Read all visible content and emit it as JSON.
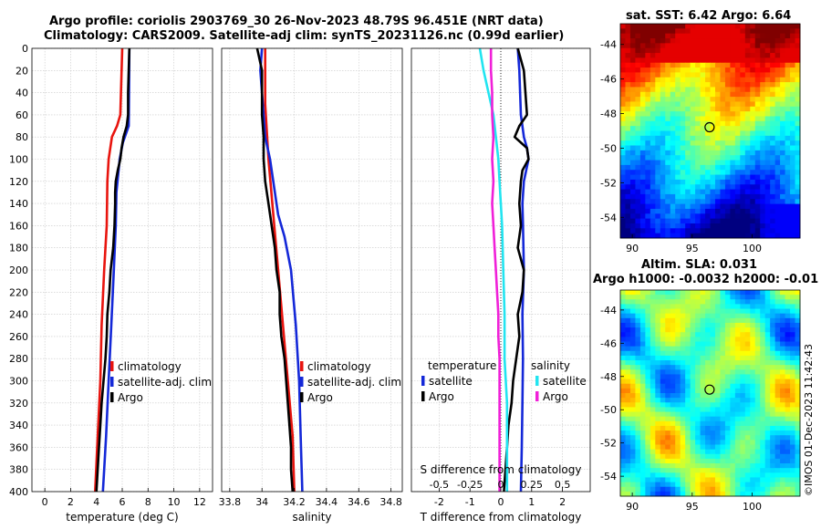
{
  "header": {
    "title_line1": "Argo profile: coriolis 2903769_30 26-Nov-2023 48.79S 96.451E (NRT data)",
    "title_line2": "Climatology: CARS2009. Satellite-adj clim: synTS_20231126.nc (0.99d earlier)"
  },
  "sst_map": {
    "title": "sat. SST: 6.42 Argo: 6.64",
    "lat_ticks": [
      -44,
      -46,
      -48,
      -50,
      -52,
      -54
    ],
    "lon_ticks": [
      90,
      95,
      100
    ],
    "lat_range": [
      -55.2,
      -42.8
    ],
    "lon_range": [
      89,
      104
    ],
    "float_position": {
      "lon": 96.451,
      "lat": -48.79
    }
  },
  "sla_map": {
    "title_line1": "Altim. SLA: 0.031",
    "title_line2": "Argo h1000: -0.0032 h2000: -0.01",
    "lat_ticks": [
      -44,
      -46,
      -48,
      -50,
      -52,
      -54
    ],
    "lon_ticks": [
      90,
      95,
      100
    ],
    "lat_range": [
      -55.2,
      -42.8
    ],
    "lon_range": [
      89,
      104
    ],
    "float_position": {
      "lon": 96.451,
      "lat": -48.79
    }
  },
  "watermark": "©IMOS 01-Dec-2023 11:42:43",
  "colors": {
    "climatology": "#e8140e",
    "satellite": "#1428d8",
    "argo": "#000000",
    "salinity_satellite": "#22e4f0",
    "salinity_argo": "#f020d8",
    "grid": "#c8c8c8"
  },
  "chart_data": [
    {
      "type": "line",
      "name": "temperature-panel",
      "xlabel": "temperature (deg C)",
      "ylabel": "",
      "xlim": [
        -1,
        13
      ],
      "ylim": [
        400,
        0
      ],
      "xticks": [
        0,
        2,
        4,
        6,
        8,
        10,
        12
      ],
      "yticks": [
        0,
        20,
        40,
        60,
        80,
        100,
        120,
        140,
        160,
        180,
        200,
        220,
        240,
        260,
        280,
        300,
        320,
        340,
        360,
        380,
        400
      ],
      "legend": [
        "climatology",
        "satellite-adj. clim",
        "Argo"
      ],
      "series": [
        {
          "name": "climatology",
          "color": "#e8140e",
          "depth": [
            0,
            60,
            70,
            80,
            100,
            120,
            160,
            200,
            250,
            300,
            350,
            400
          ],
          "values": [
            6.0,
            5.85,
            5.6,
            5.2,
            4.95,
            4.85,
            4.8,
            4.6,
            4.4,
            4.3,
            4.1,
            3.9
          ]
        },
        {
          "name": "satellite-adj. clim",
          "color": "#1428d8",
          "depth": [
            0,
            70,
            85,
            100,
            130,
            160,
            200,
            250,
            300,
            350,
            400
          ],
          "values": [
            6.55,
            6.5,
            6.05,
            5.8,
            5.55,
            5.5,
            5.35,
            5.15,
            4.95,
            4.75,
            4.5
          ]
        },
        {
          "name": "Argo",
          "color": "#000000",
          "depth": [
            0,
            20,
            40,
            60,
            70,
            80,
            90,
            100,
            110,
            120,
            130,
            140,
            160,
            180,
            200,
            220,
            240,
            260,
            280,
            300,
            320,
            340,
            360,
            380,
            400
          ],
          "values": [
            6.55,
            6.5,
            6.45,
            6.45,
            6.35,
            6.1,
            5.95,
            5.85,
            5.65,
            5.5,
            5.45,
            5.45,
            5.4,
            5.3,
            5.1,
            5.0,
            4.85,
            4.8,
            4.7,
            4.55,
            4.4,
            4.3,
            4.2,
            4.1,
            4.0
          ]
        }
      ]
    },
    {
      "type": "line",
      "name": "salinity-panel",
      "xlabel": "salinity",
      "xlim": [
        33.75,
        34.87
      ],
      "ylim": [
        400,
        0
      ],
      "xticks": [
        33.8,
        34,
        34.2,
        34.4,
        34.6,
        34.8
      ],
      "xticklabels": [
        "33.8",
        "34",
        "34.2",
        "34.4",
        "34.6",
        "34.8"
      ],
      "legend": [
        "climatology",
        "satellite-adj. clim",
        "Argo"
      ],
      "series": [
        {
          "name": "climatology",
          "color": "#e8140e",
          "depth": [
            0,
            50,
            100,
            150,
            200,
            250,
            300,
            350,
            400
          ],
          "values": [
            34.02,
            34.02,
            34.04,
            34.07,
            34.1,
            34.13,
            34.16,
            34.19,
            34.2
          ]
        },
        {
          "name": "satellite-adj. clim",
          "color": "#1428d8",
          "depth": [
            0,
            20,
            40,
            80,
            100,
            150,
            170,
            200,
            250,
            300,
            350,
            400
          ],
          "values": [
            34.0,
            33.99,
            34.0,
            34.02,
            34.05,
            34.1,
            34.14,
            34.18,
            34.21,
            34.23,
            34.24,
            34.25
          ]
        },
        {
          "name": "Argo",
          "color": "#000000",
          "depth": [
            0,
            20,
            40,
            60,
            80,
            100,
            120,
            140,
            160,
            180,
            200,
            220,
            240,
            260,
            280,
            300,
            320,
            340,
            360,
            380,
            400
          ],
          "values": [
            33.97,
            34.0,
            34.0,
            34.0,
            34.01,
            34.01,
            34.02,
            34.04,
            34.06,
            34.08,
            34.09,
            34.11,
            34.11,
            34.12,
            34.14,
            34.15,
            34.16,
            34.17,
            34.18,
            34.18,
            34.19
          ]
        }
      ]
    },
    {
      "type": "line",
      "name": "difference-panel",
      "xlabel": "T difference from climatology",
      "x2label": "S difference from climatology",
      "xlim": [
        -2.9,
        2.9
      ],
      "ylim": [
        400,
        0
      ],
      "xticks": [
        -2,
        -1,
        0,
        1,
        2
      ],
      "x2ticks": [
        -0.5,
        -0.25,
        0,
        0.25,
        0.5
      ],
      "x2ticklabels": [
        "-0.5",
        "-0.25",
        "0",
        "0.25",
        "0.5"
      ],
      "legend_temperature_title": "temperature",
      "legend_salinity_title": "salinity",
      "legend": [
        "satellite",
        "Argo",
        "satellite",
        "Argo"
      ],
      "series": [
        {
          "name": "temperature satellite",
          "group": "temperature",
          "color": "#1428d8",
          "depth": [
            0,
            20,
            60,
            80,
            90,
            100,
            120,
            140,
            160,
            200,
            240,
            280,
            320,
            360,
            400
          ],
          "values": [
            0.55,
            0.6,
            0.65,
            0.75,
            0.85,
            0.9,
            0.75,
            0.7,
            0.72,
            0.75,
            0.7,
            0.72,
            0.7,
            0.68,
            0.65
          ]
        },
        {
          "name": "temperature Argo",
          "group": "temperature",
          "color": "#000000",
          "depth": [
            0,
            20,
            40,
            60,
            70,
            80,
            90,
            100,
            110,
            120,
            140,
            160,
            180,
            200,
            220,
            240,
            260,
            280,
            300,
            320,
            340,
            360,
            380,
            400
          ],
          "values": [
            0.55,
            0.75,
            0.8,
            0.85,
            0.6,
            0.45,
            0.85,
            0.9,
            0.7,
            0.65,
            0.6,
            0.65,
            0.55,
            0.75,
            0.7,
            0.55,
            0.6,
            0.5,
            0.4,
            0.35,
            0.25,
            0.2,
            0.15,
            0.1
          ]
        },
        {
          "name": "salinity satellite",
          "group": "salinity",
          "color": "#22e4f0",
          "depth": [
            0,
            20,
            40,
            60,
            80,
            100,
            120,
            140,
            160,
            200,
            240,
            280,
            320,
            360,
            400
          ],
          "values": [
            -0.17,
            -0.14,
            -0.1,
            -0.06,
            -0.04,
            -0.02,
            -0.01,
            0.0,
            0.01,
            0.02,
            0.03,
            0.03,
            0.05,
            0.05,
            0.05
          ]
        },
        {
          "name": "salinity Argo",
          "group": "salinity",
          "color": "#f020d8",
          "depth": [
            0,
            20,
            40,
            60,
            80,
            100,
            120,
            140,
            160,
            180,
            200,
            220,
            240,
            260,
            280,
            300,
            320,
            340,
            360,
            380,
            400
          ],
          "values": [
            -0.08,
            -0.08,
            -0.07,
            -0.07,
            -0.06,
            -0.07,
            -0.06,
            -0.07,
            -0.06,
            -0.05,
            -0.04,
            -0.03,
            -0.02,
            -0.02,
            -0.01,
            -0.01,
            -0.01,
            -0.01,
            -0.01,
            -0.01,
            -0.01
          ]
        }
      ]
    }
  ]
}
